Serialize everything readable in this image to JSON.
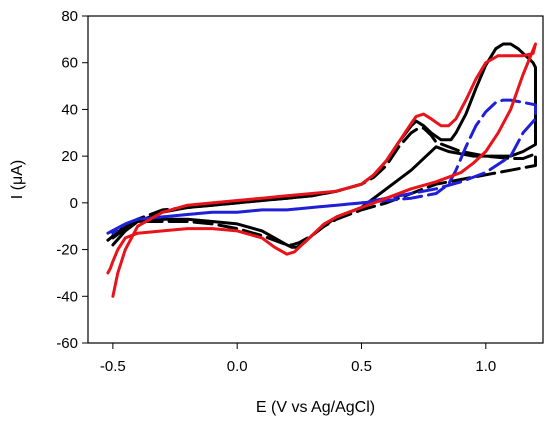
{
  "chart_data": {
    "type": "line",
    "xlabel": "E (V vs Ag/AgCl)",
    "ylabel": "I (μA)",
    "xlim": [
      -0.6,
      1.23
    ],
    "ylim": [
      -60,
      80
    ],
    "xticks": [
      -0.5,
      0.0,
      0.5,
      1.0
    ],
    "xtick_labels": [
      "-0.5",
      "0.0",
      "0.5",
      "1.0"
    ],
    "yticks": [
      -60,
      -40,
      -20,
      0,
      20,
      40,
      60,
      80
    ],
    "ytick_labels": [
      "-60",
      "-40",
      "-20",
      "0",
      "20",
      "40",
      "60",
      "80"
    ],
    "grid": false,
    "legend": "none",
    "series": [
      {
        "color": "#000000",
        "dash": "solid",
        "x": [
          -0.5,
          -0.45,
          -0.4,
          -0.3,
          -0.2,
          -0.1,
          0.0,
          0.1,
          0.2,
          0.3,
          0.4,
          0.5,
          0.55,
          0.6,
          0.65,
          0.7,
          0.72,
          0.75,
          0.78,
          0.82,
          0.86,
          0.88,
          0.92,
          0.96,
          1.0,
          1.04,
          1.07,
          1.1,
          1.13,
          1.16,
          1.19,
          1.2,
          1.2,
          1.15,
          1.1,
          1.05,
          1.0,
          0.95,
          0.9,
          0.85,
          0.8,
          0.7,
          0.6,
          0.5,
          0.45,
          0.4,
          0.35,
          0.3,
          0.27,
          0.24,
          0.22,
          0.2,
          0.15,
          0.1,
          0.0,
          -0.1,
          -0.2,
          -0.3,
          -0.4,
          -0.45,
          -0.5
        ],
        "y": [
          -18,
          -12,
          -8,
          -4,
          -2,
          -1,
          0,
          1,
          2,
          3,
          5,
          8,
          12,
          18,
          26,
          33,
          35,
          33,
          30,
          27,
          27,
          30,
          38,
          49,
          59,
          66,
          68,
          68,
          66,
          63,
          60,
          58,
          25,
          22,
          20,
          20,
          20,
          20,
          21,
          22,
          24,
          14,
          6,
          -2,
          -4,
          -6,
          -10,
          -14,
          -17,
          -19,
          -19,
          -18,
          -15,
          -12,
          -9,
          -8,
          -7,
          -7,
          -8,
          -11,
          -15
        ]
      },
      {
        "color": "#000000",
        "dash": "long",
        "x": [
          -0.52,
          -0.45,
          -0.4,
          -0.3,
          -0.2,
          -0.1,
          0.0,
          0.1,
          0.2,
          0.3,
          0.4,
          0.5,
          0.55,
          0.6,
          0.65,
          0.7,
          0.73,
          0.75,
          0.78,
          0.8,
          0.8,
          0.9,
          1.0,
          1.1,
          1.15,
          1.2,
          1.2,
          1.1,
          1.0,
          0.9,
          0.8,
          0.7,
          0.6,
          0.5,
          0.45,
          0.4,
          0.35,
          0.3,
          0.25,
          0.22,
          0.2,
          0.1,
          0.0,
          -0.1,
          -0.2,
          -0.3,
          -0.4,
          -0.45,
          -0.5
        ],
        "y": [
          -16,
          -10,
          -7,
          -3,
          -2,
          -1,
          0,
          1,
          2,
          3,
          5,
          8,
          11,
          16,
          24,
          30,
          32,
          32,
          29,
          26,
          26,
          22,
          20,
          19,
          19,
          21,
          16,
          14,
          12,
          10,
          8,
          4,
          0,
          -3,
          -5,
          -7,
          -10,
          -14,
          -17,
          -18,
          -18,
          -14,
          -11,
          -9,
          -8,
          -8,
          -8,
          -10,
          -14
        ]
      },
      {
        "color": "#1f1fd6",
        "dash": "long",
        "x": [
          -0.52,
          -0.45,
          -0.4,
          -0.3,
          -0.2,
          -0.1,
          0.0,
          0.1,
          0.2,
          0.3,
          0.4,
          0.5,
          0.6,
          0.7,
          0.8,
          0.85,
          0.88,
          0.92,
          0.96,
          1.0,
          1.04,
          1.07,
          1.1,
          1.15,
          1.2,
          1.2,
          1.15,
          1.1,
          1.0,
          0.9,
          0.8,
          0.7,
          0.6,
          0.5,
          0.4,
          0.3,
          0.2,
          0.1,
          0.0,
          -0.1,
          -0.2,
          -0.3,
          -0.4,
          -0.45,
          -0.5
        ],
        "y": [
          -13,
          -9,
          -7,
          -6,
          -5,
          -4,
          -4,
          -3,
          -3,
          -2,
          -1,
          0,
          1,
          2,
          4,
          8,
          14,
          24,
          33,
          39,
          43,
          44,
          44,
          43,
          42,
          36,
          30,
          20,
          13,
          9,
          6,
          4,
          2,
          0,
          -1,
          -2,
          -3,
          -3,
          -4,
          -4,
          -5,
          -6,
          -7,
          -9,
          -13
        ]
      },
      {
        "color": "#e8141a",
        "dash": "solid",
        "x": [
          -0.5,
          -0.48,
          -0.45,
          -0.4,
          -0.3,
          -0.2,
          -0.1,
          0.0,
          0.1,
          0.2,
          0.3,
          0.4,
          0.5,
          0.55,
          0.6,
          0.65,
          0.7,
          0.72,
          0.75,
          0.78,
          0.82,
          0.85,
          0.88,
          0.92,
          0.96,
          1.0,
          1.05,
          1.1,
          1.15,
          1.19,
          1.2,
          1.15,
          1.1,
          1.05,
          1.0,
          0.95,
          0.9,
          0.85,
          0.8,
          0.7,
          0.6,
          0.5,
          0.45,
          0.4,
          0.35,
          0.3,
          0.26,
          0.23,
          0.2,
          0.15,
          0.1,
          0.0,
          -0.1,
          -0.2,
          -0.3,
          -0.4,
          -0.45,
          -0.48,
          -0.5,
          -0.51,
          -0.52
        ],
        "y": [
          -40,
          -30,
          -20,
          -10,
          -4,
          -1,
          0,
          1,
          2,
          3,
          4,
          5,
          8,
          12,
          18,
          26,
          34,
          37,
          38,
          36,
          33,
          33,
          36,
          44,
          53,
          60,
          63,
          63,
          63,
          64,
          68,
          55,
          40,
          30,
          22,
          17,
          13,
          11,
          9,
          6,
          2,
          -2,
          -4,
          -6,
          -9,
          -14,
          -18,
          -21,
          -22,
          -19,
          -15,
          -12,
          -11,
          -11,
          -12,
          -13,
          -15,
          -20,
          -25,
          -28,
          -30
        ]
      }
    ]
  }
}
